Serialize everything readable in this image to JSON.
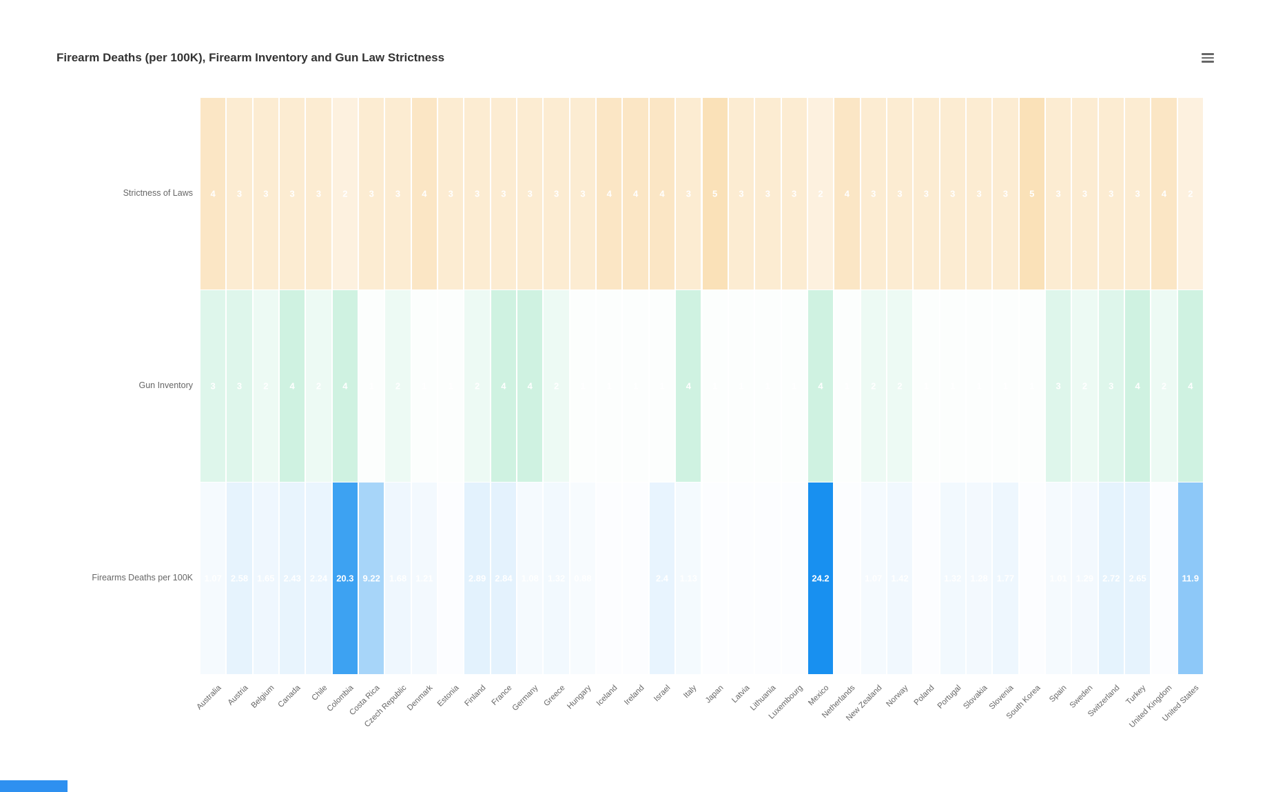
{
  "title": "Firearm Deaths (per 100K), Firearm Inventory and Gun Law Strictness",
  "icons": {
    "context_menu": "hamburger-menu-icon"
  },
  "colors": {
    "title_color": "#333333",
    "axis_label_color": "#666666",
    "strictness_base": "#f6c473",
    "inventory_base": "#b9ecd4",
    "deaths_base": "#1890f0",
    "background": "#ffffff",
    "bottom_bar_blue": "#2e90f0"
  },
  "chart_data": {
    "type": "heatmap",
    "title": "Firearm Deaths (per 100K), Firearm Inventory and Gun Law Strictness",
    "xlabel": "",
    "ylabel": "",
    "legend": "none",
    "grid": false,
    "categories": [
      "Australia",
      "Austria",
      "Belgium",
      "Canada",
      "Chile",
      "Colombia",
      "Costa Rica",
      "Czech Republic",
      "Denmark",
      "Estonia",
      "Finland",
      "France",
      "Germany",
      "Greece",
      "Hungary",
      "Iceland",
      "Ireland",
      "Israel",
      "Italy",
      "Japan",
      "Latvia",
      "Lithuania",
      "Luxembourg",
      "Mexico",
      "Netherlands",
      "New Zealand",
      "Norway",
      "Poland",
      "Portugal",
      "Slovakia",
      "Slovenia",
      "South Korea",
      "Spain",
      "Sweden",
      "Switzerland",
      "Turkey",
      "United Kingdom",
      "United States"
    ],
    "series": [
      {
        "name": "Strictness of Laws",
        "scale": "1-5",
        "color_base": "#f6c473",
        "f_a": 0.045,
        "f_b": 0.093,
        "values": [
          4,
          3,
          3,
          3,
          3,
          2,
          3,
          3,
          4,
          3,
          3,
          3,
          3,
          3,
          3,
          4,
          4,
          4,
          3,
          5,
          3,
          3,
          3,
          2,
          4,
          3,
          3,
          3,
          3,
          3,
          3,
          5,
          3,
          3,
          3,
          3,
          4,
          2
        ]
      },
      {
        "name": "Gun Inventory",
        "scale": "1-5",
        "color_base": "#b9ecd4",
        "f_a": -0.1625,
        "f_b": 0.2125,
        "values": [
          3,
          3,
          2,
          4,
          2,
          4,
          1,
          2,
          1,
          1,
          2,
          4,
          4,
          2,
          1,
          1,
          1,
          1,
          4,
          1,
          1,
          1,
          1,
          4,
          1,
          2,
          2,
          1,
          1,
          1,
          1,
          1,
          3,
          2,
          3,
          4,
          2,
          4
        ]
      },
      {
        "name": "Firearms Deaths per 100K",
        "scale": "0-24.2",
        "color_base": "#1890f0",
        "f_a": 0,
        "f_b": 0.041322,
        "values": [
          1.07,
          2.58,
          1.65,
          2.43,
          2.24,
          20.3,
          9.22,
          1.68,
          1.21,
          null,
          2.89,
          2.84,
          1.08,
          1.32,
          0.88,
          null,
          null,
          2.4,
          1.13,
          null,
          null,
          null,
          null,
          24.2,
          null,
          1.07,
          1.42,
          null,
          1.32,
          1.28,
          1.77,
          null,
          1.01,
          1.29,
          2.72,
          2.65,
          null,
          11.9
        ],
        "labels": [
          "1.07",
          "2.58",
          "1.65",
          "2.43",
          "2.24",
          "20.3",
          "9.22",
          "1.68",
          "1.21",
          "",
          "2.89",
          "2.84",
          "1.08",
          "1.32",
          "0.88",
          "",
          "",
          "2.4",
          "1.13",
          "",
          "",
          "",
          "",
          "24.2",
          "",
          "1.07",
          "1.42",
          "",
          "1.32",
          "1.28",
          "1.77",
          "",
          "1.01",
          "1.29",
          "2.72",
          "2.65",
          "",
          "11.9"
        ]
      }
    ]
  }
}
